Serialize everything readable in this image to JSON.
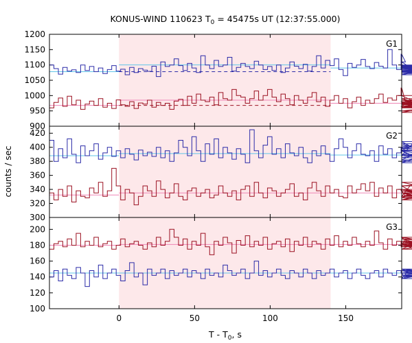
{
  "chart_data": {
    "type": "line",
    "title": "KONUS-WIND 110623 T",
    "title_sub": "0",
    "title_rest": " = 45475s UT (12:37:55.000)",
    "xlabel": "T - T",
    "xlabel_sub": "0",
    "xlabel_rest": ", s",
    "ylabel": "counts / sec",
    "xlim": [
      -46,
      187
    ],
    "xticks": [
      "0",
      "50",
      "100",
      "150"
    ],
    "xtick_values": [
      0,
      50,
      100,
      150
    ],
    "highlight": {
      "from": 0,
      "to": 140,
      "color": "#fde8ea"
    },
    "bin_width": 2.944,
    "bin_start": -46,
    "colors": {
      "blue": "#2b2ba8",
      "red": "#9b1021",
      "blue_bg": "#5fc5e8",
      "red_bg": "#ef85b5"
    },
    "panels": [
      {
        "label": "G1",
        "ylim": [
          900,
          1200
        ],
        "yticks": [
          "900",
          "950",
          "1000",
          "1050",
          "1100",
          "1150",
          "1200"
        ],
        "ytick_values": [
          900,
          950,
          1000,
          1050,
          1100,
          1150,
          1200
        ],
        "series": [
          {
            "color": "blue",
            "background": {
              "pre": 1078,
              "post": 1090,
              "inner_solid": 1100,
              "inner_dashed": 1078
            },
            "values": [
              1100,
              1088,
              1070,
              1092,
              1080,
              1084,
              1075,
              1100,
              1082,
              1095,
              1078,
              1090,
              1072,
              1085,
              1098,
              1080,
              1086,
              1068,
              1092,
              1075,
              1088,
              1083,
              1079,
              1096,
              1062,
              1110,
              1095,
              1100,
              1120,
              1098,
              1082,
              1105,
              1090,
              1075,
              1130,
              1100,
              1088,
              1115,
              1095,
              1100,
              1125,
              1080,
              1092,
              1105,
              1095,
              1088,
              1112,
              1100,
              1085,
              1095,
              1082,
              1100,
              1075,
              1090,
              1110,
              1096,
              1088,
              1102,
              1080,
              1095,
              1130,
              1090,
              1115,
              1098,
              1120,
              1085,
              1065,
              1105,
              1092,
              1100,
              1118,
              1095,
              1088,
              1108,
              1096,
              1090,
              1150,
              1100,
              1085,
              1135,
              1110,
              1092,
              1078,
              1088,
              1098,
              1080,
              1090,
              1076,
              1094,
              1068,
              1100,
              1085,
              1092,
              1078,
              1088,
              1072,
              1096,
              1082,
              1090
            ]
          },
          {
            "color": "red",
            "background": {
              "pre": 968,
              "post": 975,
              "inner_solid": 985,
              "inner_dashed": 968
            },
            "values": [
              960,
              978,
              992,
              965,
              998,
              970,
              985,
              955,
              972,
              982,
              968,
              990,
              962,
              975,
              958,
              986,
              970,
              965,
              980,
              958,
              976,
              972,
              985,
              962,
              978,
              968,
              975,
              955,
              982,
              988,
              968,
              998,
              975,
              1005,
              985,
              980,
              995,
              970,
              1010,
              990,
              985,
              1020,
              1000,
              995,
              975,
              990,
              1015,
              985,
              1000,
              1020,
              995,
              980,
              1005,
              990,
              970,
              1000,
              985,
              975,
              995,
              1010,
              980,
              995,
              965,
              985,
              1000,
              975,
              990,
              960,
              980,
              995,
              968,
              985,
              975,
              990,
              1005,
              978,
              992,
              985,
              1000,
              1025,
              980,
              965,
              990,
              975,
              1000,
              960,
              985,
              970,
              975,
              945,
              972,
              965,
              980,
              950,
              975,
              970,
              962,
              978,
              970
            ]
          }
        ]
      },
      {
        "label": "G2",
        "ylim": [
          300,
          430
        ],
        "yticks": [
          "300",
          "320",
          "340",
          "360",
          "380",
          "400",
          "420"
        ],
        "ytick_values": [
          300,
          320,
          340,
          360,
          380,
          400,
          420
        ],
        "series": [
          {
            "color": "blue",
            "background": {
              "pre": 388,
              "post": 389,
              "inner_solid": 391
            },
            "values": [
              410,
              380,
              398,
              385,
              412,
              390,
              378,
              402,
              388,
              395,
              405,
              383,
              392,
              400,
              387,
              395,
              385,
              398,
              390,
              382,
              396,
              388,
              393,
              387,
              400,
              385,
              395,
              380,
              392,
              410,
              400,
              388,
              415,
              395,
              380,
              405,
              390,
              412,
              385,
              400,
              392,
              383,
              398,
              390,
              378,
              425,
              395,
              385,
              403,
              415,
              390,
              398,
              385,
              405,
              392,
              388,
              400,
              385,
              378,
              395,
              388,
              402,
              390,
              380,
              398,
              412,
              400,
              385,
              395,
              405,
              390,
              388,
              395,
              380,
              402,
              390,
              398,
              385,
              392,
              400,
              395,
              388,
              408,
              395,
              382,
              398,
              405,
              390,
              378,
              395,
              385,
              400,
              388,
              395,
              380,
              402,
              388,
              396,
              390
            ]
          },
          {
            "color": "red",
            "background": {
              "pre": 332,
              "post": 335,
              "inner_solid": 335
            },
            "values": [
              335,
              325,
              340,
              330,
              345,
              322,
              338,
              330,
              328,
              342,
              335,
              350,
              330,
              338,
              370,
              345,
              325,
              340,
              335,
              318,
              330,
              345,
              338,
              330,
              352,
              340,
              328,
              335,
              348,
              330,
              325,
              338,
              342,
              330,
              335,
              340,
              328,
              332,
              345,
              335,
              330,
              338,
              325,
              340,
              345,
              330,
              350,
              335,
              328,
              342,
              338,
              330,
              335,
              340,
              348,
              330,
              335,
              325,
              342,
              350,
              338,
              330,
              345,
              335,
              340,
              330,
              328,
              345,
              335,
              340,
              348,
              338,
              350,
              330,
              342,
              335,
              345,
              328,
              340,
              338,
              330,
              345,
              335,
              328,
              340,
              335,
              325,
              338,
              330,
              345,
              350,
              335,
              325,
              338,
              330,
              340,
              328,
              335,
              340
            ]
          }
        ]
      },
      {
        "label": "G3",
        "ylim": [
          100,
          215
        ],
        "yticks": [
          "100",
          "120",
          "140",
          "160",
          "180",
          "200"
        ],
        "ytick_values": [
          100,
          120,
          140,
          160,
          180,
          200
        ],
        "series": [
          {
            "color": "red",
            "background": {
              "pre": 180,
              "post": 181,
              "inner_solid": 181
            },
            "values": [
              175,
              182,
              185,
              178,
              188,
              180,
              195,
              178,
              185,
              180,
              190,
              178,
              182,
              185,
              175,
              180,
              188,
              178,
              182,
              185,
              180,
              175,
              183,
              178,
              190,
              180,
              185,
              200,
              190,
              180,
              188,
              175,
              185,
              180,
              195,
              178,
              168,
              185,
              180,
              190,
              183,
              170,
              186,
              180,
              192,
              178,
              185,
              180,
              190,
              175,
              182,
              185,
              178,
              188,
              172,
              185,
              180,
              190,
              178,
              185,
              182,
              175,
              188,
              180,
              192,
              178,
              185,
              180,
              190,
              182,
              178,
              185,
              180,
              198,
              183,
              175,
              188,
              180,
              185,
              178,
              190,
              182,
              175,
              185,
              180,
              188,
              178,
              183,
              185,
              178,
              190,
              180,
              175,
              185,
              180,
              188,
              178,
              182,
              180
            ]
          },
          {
            "color": "blue",
            "background": {
              "pre": 145,
              "post": 145,
              "inner_solid": 145
            },
            "values": [
              140,
              148,
              135,
              150,
              142,
              138,
              152,
              145,
              128,
              148,
              140,
              155,
              138,
              145,
              150,
              142,
              135,
              148,
              158,
              140,
              145,
              130,
              150,
              142,
              145,
              150,
              138,
              148,
              142,
              145,
              150,
              140,
              148,
              145,
              138,
              150,
              142,
              145,
              140,
              155,
              148,
              142,
              145,
              150,
              138,
              145,
              160,
              142,
              148,
              140,
              145,
              150,
              142,
              138,
              148,
              145,
              140,
              150,
              145,
              138,
              148,
              142,
              145,
              150,
              140,
              145,
              148,
              138,
              145,
              150,
              142,
              138,
              145,
              148,
              140,
              150,
              145,
              142,
              148,
              145,
              138,
              150,
              142,
              145,
              148,
              140,
              145,
              150,
              142,
              138,
              148,
              145,
              140,
              150,
              142,
              145,
              148,
              140,
              145
            ]
          }
        ]
      }
    ]
  }
}
